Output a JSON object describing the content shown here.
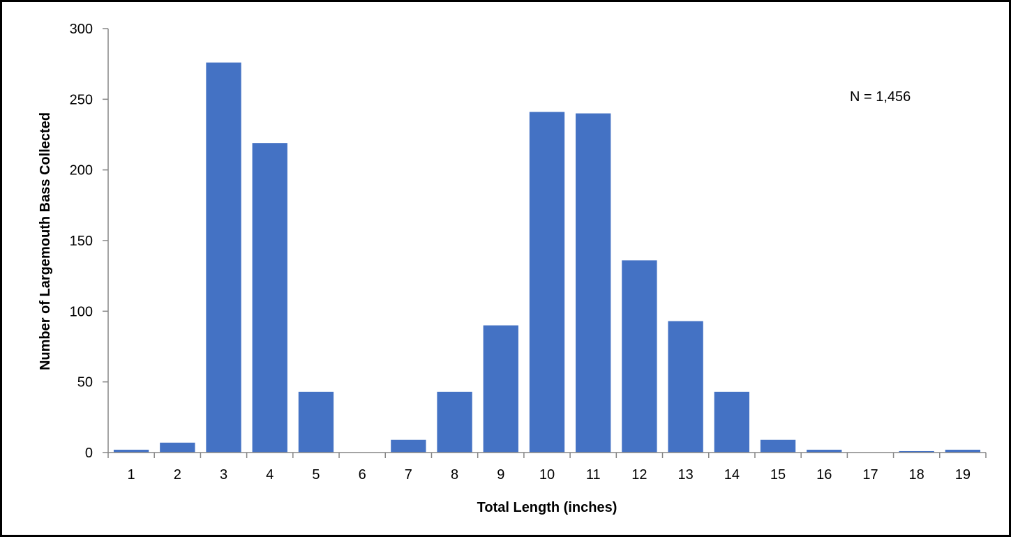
{
  "chart_data": {
    "type": "bar",
    "title": "",
    "xlabel": "Total Length (inches)",
    "ylabel": "Number of Largemouth Bass Collected",
    "categories": [
      "1",
      "2",
      "3",
      "4",
      "5",
      "6",
      "7",
      "8",
      "9",
      "10",
      "11",
      "12",
      "13",
      "14",
      "15",
      "16",
      "17",
      "18",
      "19"
    ],
    "values": [
      2,
      7,
      276,
      219,
      43,
      0,
      9,
      43,
      90,
      241,
      240,
      136,
      93,
      43,
      9,
      2,
      0,
      1,
      2
    ],
    "ylim": [
      0,
      300
    ],
    "yticks": [
      "0",
      "50",
      "100",
      "150",
      "200",
      "250",
      "300"
    ],
    "grid": false,
    "legend": "none",
    "annotation": "N = 1,456",
    "bar_color": "#4472C4",
    "axis_color": "#868686"
  }
}
